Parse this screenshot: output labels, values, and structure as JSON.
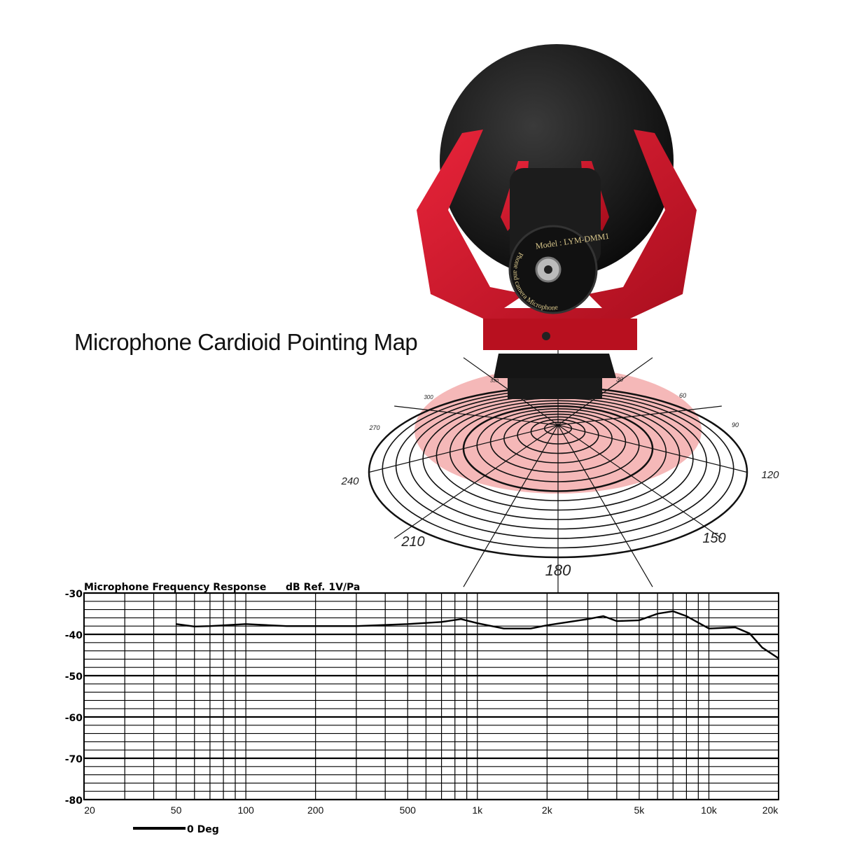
{
  "headline": "Microphone Cardioid Pointing Map",
  "product": {
    "model_text": "Model : LYM-DMM1",
    "ring_text": "Phone and camera Microphone",
    "colors": {
      "foam": "#141414",
      "mount": "#d3182a",
      "barrel": "#1a1a1a"
    }
  },
  "polar_map": {
    "angle_labels": [
      "30",
      "60",
      "90",
      "120",
      "150",
      "180",
      "210",
      "240",
      "270",
      "300",
      "330"
    ],
    "pattern": "cardioid",
    "fill_color": "#f2a0a0"
  },
  "chart_data": {
    "type": "line",
    "title": "Microphone Frequency Response",
    "ylabel": "dB Ref. 1V/Pa",
    "x_scale": "log",
    "xlim": [
      20,
      20000
    ],
    "ylim": [
      -80,
      -30
    ],
    "grid": true,
    "x_ticks": [
      20,
      50,
      100,
      200,
      500,
      1000,
      2000,
      5000,
      10000,
      20000
    ],
    "x_tick_labels": [
      "20",
      "50",
      "100",
      "200",
      "500",
      "1k",
      "2k",
      "5k",
      "10k",
      "20k"
    ],
    "y_ticks": [
      -30,
      -40,
      -50,
      -60,
      -70,
      -80
    ],
    "y_tick_labels": [
      "-30",
      "-40",
      "-50",
      "-60",
      "-70",
      "-80"
    ],
    "legend": {
      "placement": "bottom-left",
      "entries": [
        "0 Deg"
      ]
    },
    "series": [
      {
        "name": "0 Deg",
        "x": [
          50,
          60,
          70,
          100,
          150,
          200,
          300,
          500,
          700,
          850,
          1000,
          1300,
          1700,
          2000,
          3000,
          3500,
          4000,
          5000,
          6000,
          7000,
          8000,
          10000,
          13000,
          15000,
          17000,
          20000
        ],
        "y": [
          -37.5,
          -38.1,
          -38.0,
          -37.5,
          -38.0,
          -38.0,
          -38.0,
          -37.5,
          -37.0,
          -36.3,
          -37.3,
          -38.6,
          -38.6,
          -37.8,
          -36.3,
          -35.6,
          -36.8,
          -36.6,
          -35.0,
          -34.4,
          -35.6,
          -38.6,
          -38.3,
          -39.8,
          -43.2,
          -45.8
        ]
      }
    ]
  }
}
